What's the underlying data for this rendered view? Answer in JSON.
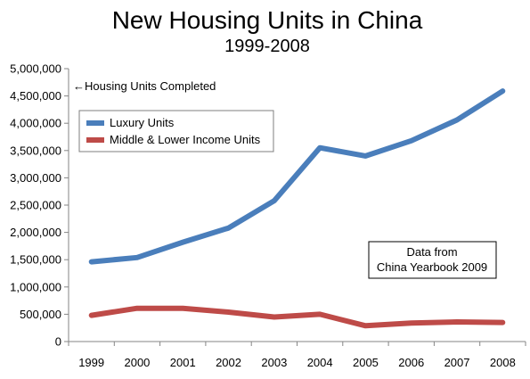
{
  "chart_data": {
    "type": "line",
    "title": "New Housing Units in China",
    "subtitle": "1999-2008",
    "xlabel": "",
    "ylabel": "",
    "y_axis_note": "←Housing Units Completed",
    "x": [
      "1999",
      "2000",
      "2001",
      "2002",
      "2003",
      "2004",
      "2005",
      "2006",
      "2007",
      "2008"
    ],
    "ylim": [
      0,
      5000000
    ],
    "yticks": [
      0,
      500000,
      1000000,
      1500000,
      2000000,
      2500000,
      3000000,
      3500000,
      4000000,
      4500000,
      5000000
    ],
    "ytick_labels": [
      "0",
      "500,000",
      "1,000,000",
      "1,500,000",
      "2,000,000",
      "2,500,000",
      "3,000,000",
      "3,500,000",
      "4,000,000",
      "4,500,000",
      "5,000,000"
    ],
    "grid": false,
    "legend_position": "top-left",
    "series": [
      {
        "name": "Luxury Units",
        "color": "#4a7ebb",
        "values": [
          1460000,
          1540000,
          1820000,
          2080000,
          2580000,
          3550000,
          3400000,
          3680000,
          4060000,
          4590000
        ]
      },
      {
        "name": "Middle & Lower Income Units",
        "color": "#be4b48",
        "values": [
          480000,
          610000,
          610000,
          540000,
          450000,
          500000,
          290000,
          340000,
          360000,
          350000
        ]
      }
    ],
    "annotation": {
      "line1": "Data from",
      "line2": "China Yearbook 2009"
    }
  }
}
